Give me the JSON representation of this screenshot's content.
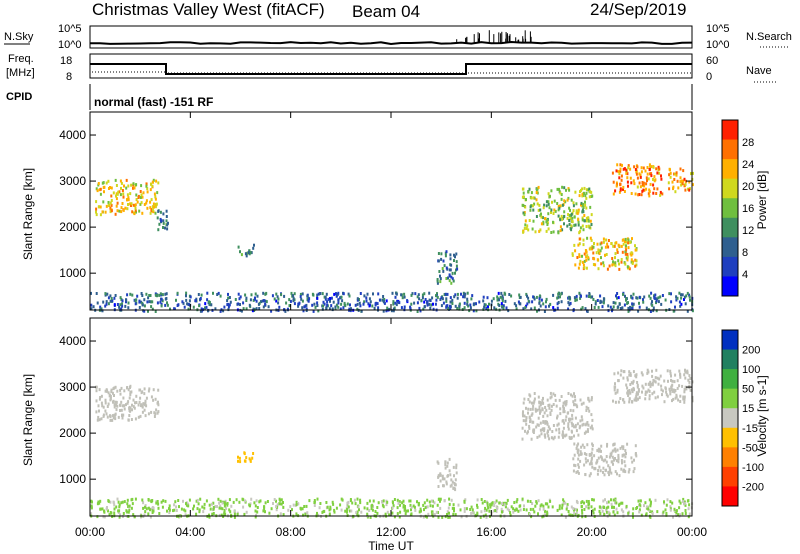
{
  "header": {
    "station": "Christmas Valley West (fitACF)",
    "beam": "Beam 04",
    "date": "24/Sep/2019"
  },
  "status_panels": {
    "nsky_label": "N.Sky",
    "nsky_ticks": [
      "10^5",
      "10^0"
    ],
    "nsearch_label": "N.Search",
    "nsearch_ticks": [
      "10^5",
      "10^0"
    ],
    "freq_label": [
      "Freq.",
      "[MHz]"
    ],
    "freq_ticks": [
      "18",
      "8"
    ],
    "nave_label": "Nave",
    "nave_ticks": [
      "60",
      "0"
    ],
    "cpid_label": "CPID",
    "cpid_text": "normal (fast) -151 RF"
  },
  "colors": {
    "power_scale": [
      "#0000ff",
      "#1f3fbf",
      "#2f5f8f",
      "#3f8f5f",
      "#6fbf3f",
      "#cfd81f",
      "#ffb000",
      "#ff7000",
      "#ff2000"
    ],
    "velocity_scale": [
      "#ff0000",
      "#ff4000",
      "#ff8000",
      "#ffc000",
      "#c8c8c0",
      "#80d040",
      "#40b040",
      "#208060",
      "#0030c0"
    ],
    "ground_scatter": "#c0c0b8"
  },
  "chart_data": [
    {
      "type": "heatmap",
      "name": "power",
      "ylabel": "Slant Range [km]",
      "yticks": [
        "1000",
        "2000",
        "3000",
        "4000"
      ],
      "ylim": [
        200,
        4500
      ],
      "xlim": [
        0,
        24
      ],
      "xticks": [
        "00:00",
        "04:00",
        "08:00",
        "12:00",
        "16:00",
        "20:00",
        "00:00"
      ],
      "xlabel": "Time UT",
      "colorbar_label": "Power [dB]",
      "colorbar_ticks": [
        "4",
        "8",
        "12",
        "16",
        "20",
        "24",
        "28"
      ],
      "colorbar_range": [
        0,
        30
      ],
      "regions": [
        {
          "t0": 0.2,
          "t1": 2.7,
          "r0": 2300,
          "r1": 3050,
          "level": 20
        },
        {
          "t0": 2.6,
          "t1": 3.1,
          "r0": 1900,
          "r1": 2400,
          "level": 10
        },
        {
          "t0": 5.8,
          "t1": 6.5,
          "r0": 1400,
          "r1": 1650,
          "level": 12
        },
        {
          "t0": 13.8,
          "t1": 14.6,
          "r0": 800,
          "r1": 1500,
          "level": 10
        },
        {
          "t0": 17.2,
          "t1": 20.0,
          "r0": 1900,
          "r1": 2900,
          "level": 16
        },
        {
          "t0": 19.2,
          "t1": 21.8,
          "r0": 1100,
          "r1": 1800,
          "level": 20
        },
        {
          "t0": 20.8,
          "t1": 22.8,
          "r0": 2700,
          "r1": 3400,
          "level": 24
        },
        {
          "t0": 23.0,
          "t1": 24.0,
          "r0": 2800,
          "r1": 3300,
          "level": 22
        },
        {
          "t0": 0.0,
          "t1": 24.0,
          "r0": 200,
          "r1": 600,
          "level": 8
        }
      ]
    },
    {
      "type": "heatmap",
      "name": "velocity",
      "ylabel": "Slant Range [km]",
      "yticks": [
        "1000",
        "2000",
        "3000",
        "4000"
      ],
      "ylim": [
        200,
        4500
      ],
      "xlim": [
        0,
        24
      ],
      "xticks": [
        "00:00",
        "04:00",
        "08:00",
        "12:00",
        "16:00",
        "20:00",
        "00:00"
      ],
      "xlabel": "Time UT",
      "colorbar_label": "Velocity [m s-1]",
      "colorbar_ticks": [
        "200",
        "100",
        "50",
        "15",
        "-15",
        "-50",
        "-100",
        "-200"
      ],
      "colorbar_range": [
        -250,
        250
      ],
      "regions": [
        {
          "t0": 0.2,
          "t1": 2.7,
          "r0": 2300,
          "r1": 3050,
          "level": 0
        },
        {
          "t0": 5.8,
          "t1": 6.5,
          "r0": 1400,
          "r1": 1650,
          "level": -60
        },
        {
          "t0": 13.8,
          "t1": 14.6,
          "r0": 800,
          "r1": 1500,
          "level": 0
        },
        {
          "t0": 17.2,
          "t1": 20.0,
          "r0": 1900,
          "r1": 2900,
          "level": 0
        },
        {
          "t0": 19.2,
          "t1": 21.8,
          "r0": 1100,
          "r1": 1800,
          "level": 0
        },
        {
          "t0": 20.8,
          "t1": 24.0,
          "r0": 2700,
          "r1": 3400,
          "level": 0
        },
        {
          "t0": 0.0,
          "t1": 24.0,
          "r0": 200,
          "r1": 600,
          "level": 30
        }
      ]
    }
  ]
}
